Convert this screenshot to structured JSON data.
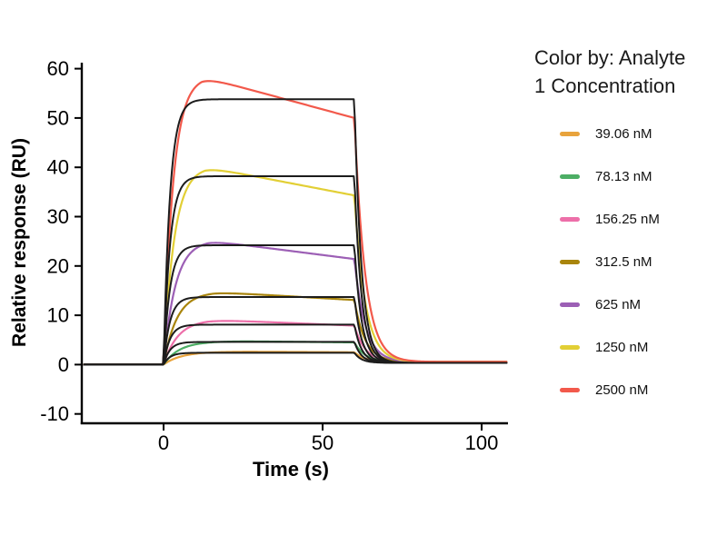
{
  "chart_data": {
    "type": "line",
    "title": "",
    "xlabel": "Time (s)",
    "ylabel": "Relative response (RU)",
    "xlim": [
      -26,
      108
    ],
    "ylim": [
      -10,
      60
    ],
    "xticks": [
      0,
      50,
      100
    ],
    "yticks": [
      60,
      50,
      40,
      30,
      20,
      10,
      0,
      -10
    ],
    "grid": false,
    "legend": {
      "title_line1": "Color by: Analyte",
      "title_line2": "1 Concentration",
      "position": "right"
    },
    "association_start_s": 0,
    "association_end_s": 60,
    "baseline_ru": 0,
    "fit_color": "#1c1c1c",
    "fit_rise_rate_per_s": 0.5,
    "fit_dissociation_rate_per_s": 0.45,
    "fit_dissociation_baseline_ru": 0.35,
    "dissociation_rate_per_s": 0.3,
    "dissociation_baseline_ru": 0.55,
    "series": [
      {
        "name": "39.06 nM",
        "color": "#E8A33C",
        "peak_ru": 2.6,
        "peak_time_s": 25,
        "end_association_ru": 2.5,
        "rise_rate_per_s": 0.18,
        "fit_plateau_ru": 2.4
      },
      {
        "name": "78.13 nM",
        "color": "#4DAE65",
        "peak_ru": 4.7,
        "peak_time_s": 25,
        "end_association_ru": 4.5,
        "rise_rate_per_s": 0.2,
        "fit_plateau_ru": 4.6
      },
      {
        "name": "156.25 nM",
        "color": "#ED6FA9",
        "peak_ru": 8.7,
        "peak_time_s": 14,
        "end_association_ru": 7.9,
        "rise_rate_per_s": 0.22,
        "fit_plateau_ru": 8.1
      },
      {
        "name": "312.5 nM",
        "color": "#A9850C",
        "peak_ru": 14.4,
        "peak_time_s": 16,
        "end_association_ru": 13.1,
        "rise_rate_per_s": 0.24,
        "fit_plateau_ru": 13.7
      },
      {
        "name": "625 nM",
        "color": "#9C5FB5",
        "peak_ru": 24.6,
        "peak_time_s": 14,
        "end_association_ru": 21.4,
        "rise_rate_per_s": 0.27,
        "fit_plateau_ru": 24.2
      },
      {
        "name": "1250 nM",
        "color": "#E2CF35",
        "peak_ru": 39.3,
        "peak_time_s": 13,
        "end_association_ru": 34.3,
        "rise_rate_per_s": 0.3,
        "fit_plateau_ru": 38.2
      },
      {
        "name": "2500 nM",
        "color": "#F2594B",
        "peak_ru": 57.3,
        "peak_time_s": 12,
        "end_association_ru": 50.0,
        "rise_rate_per_s": 0.33,
        "fit_plateau_ru": 53.8
      }
    ]
  }
}
